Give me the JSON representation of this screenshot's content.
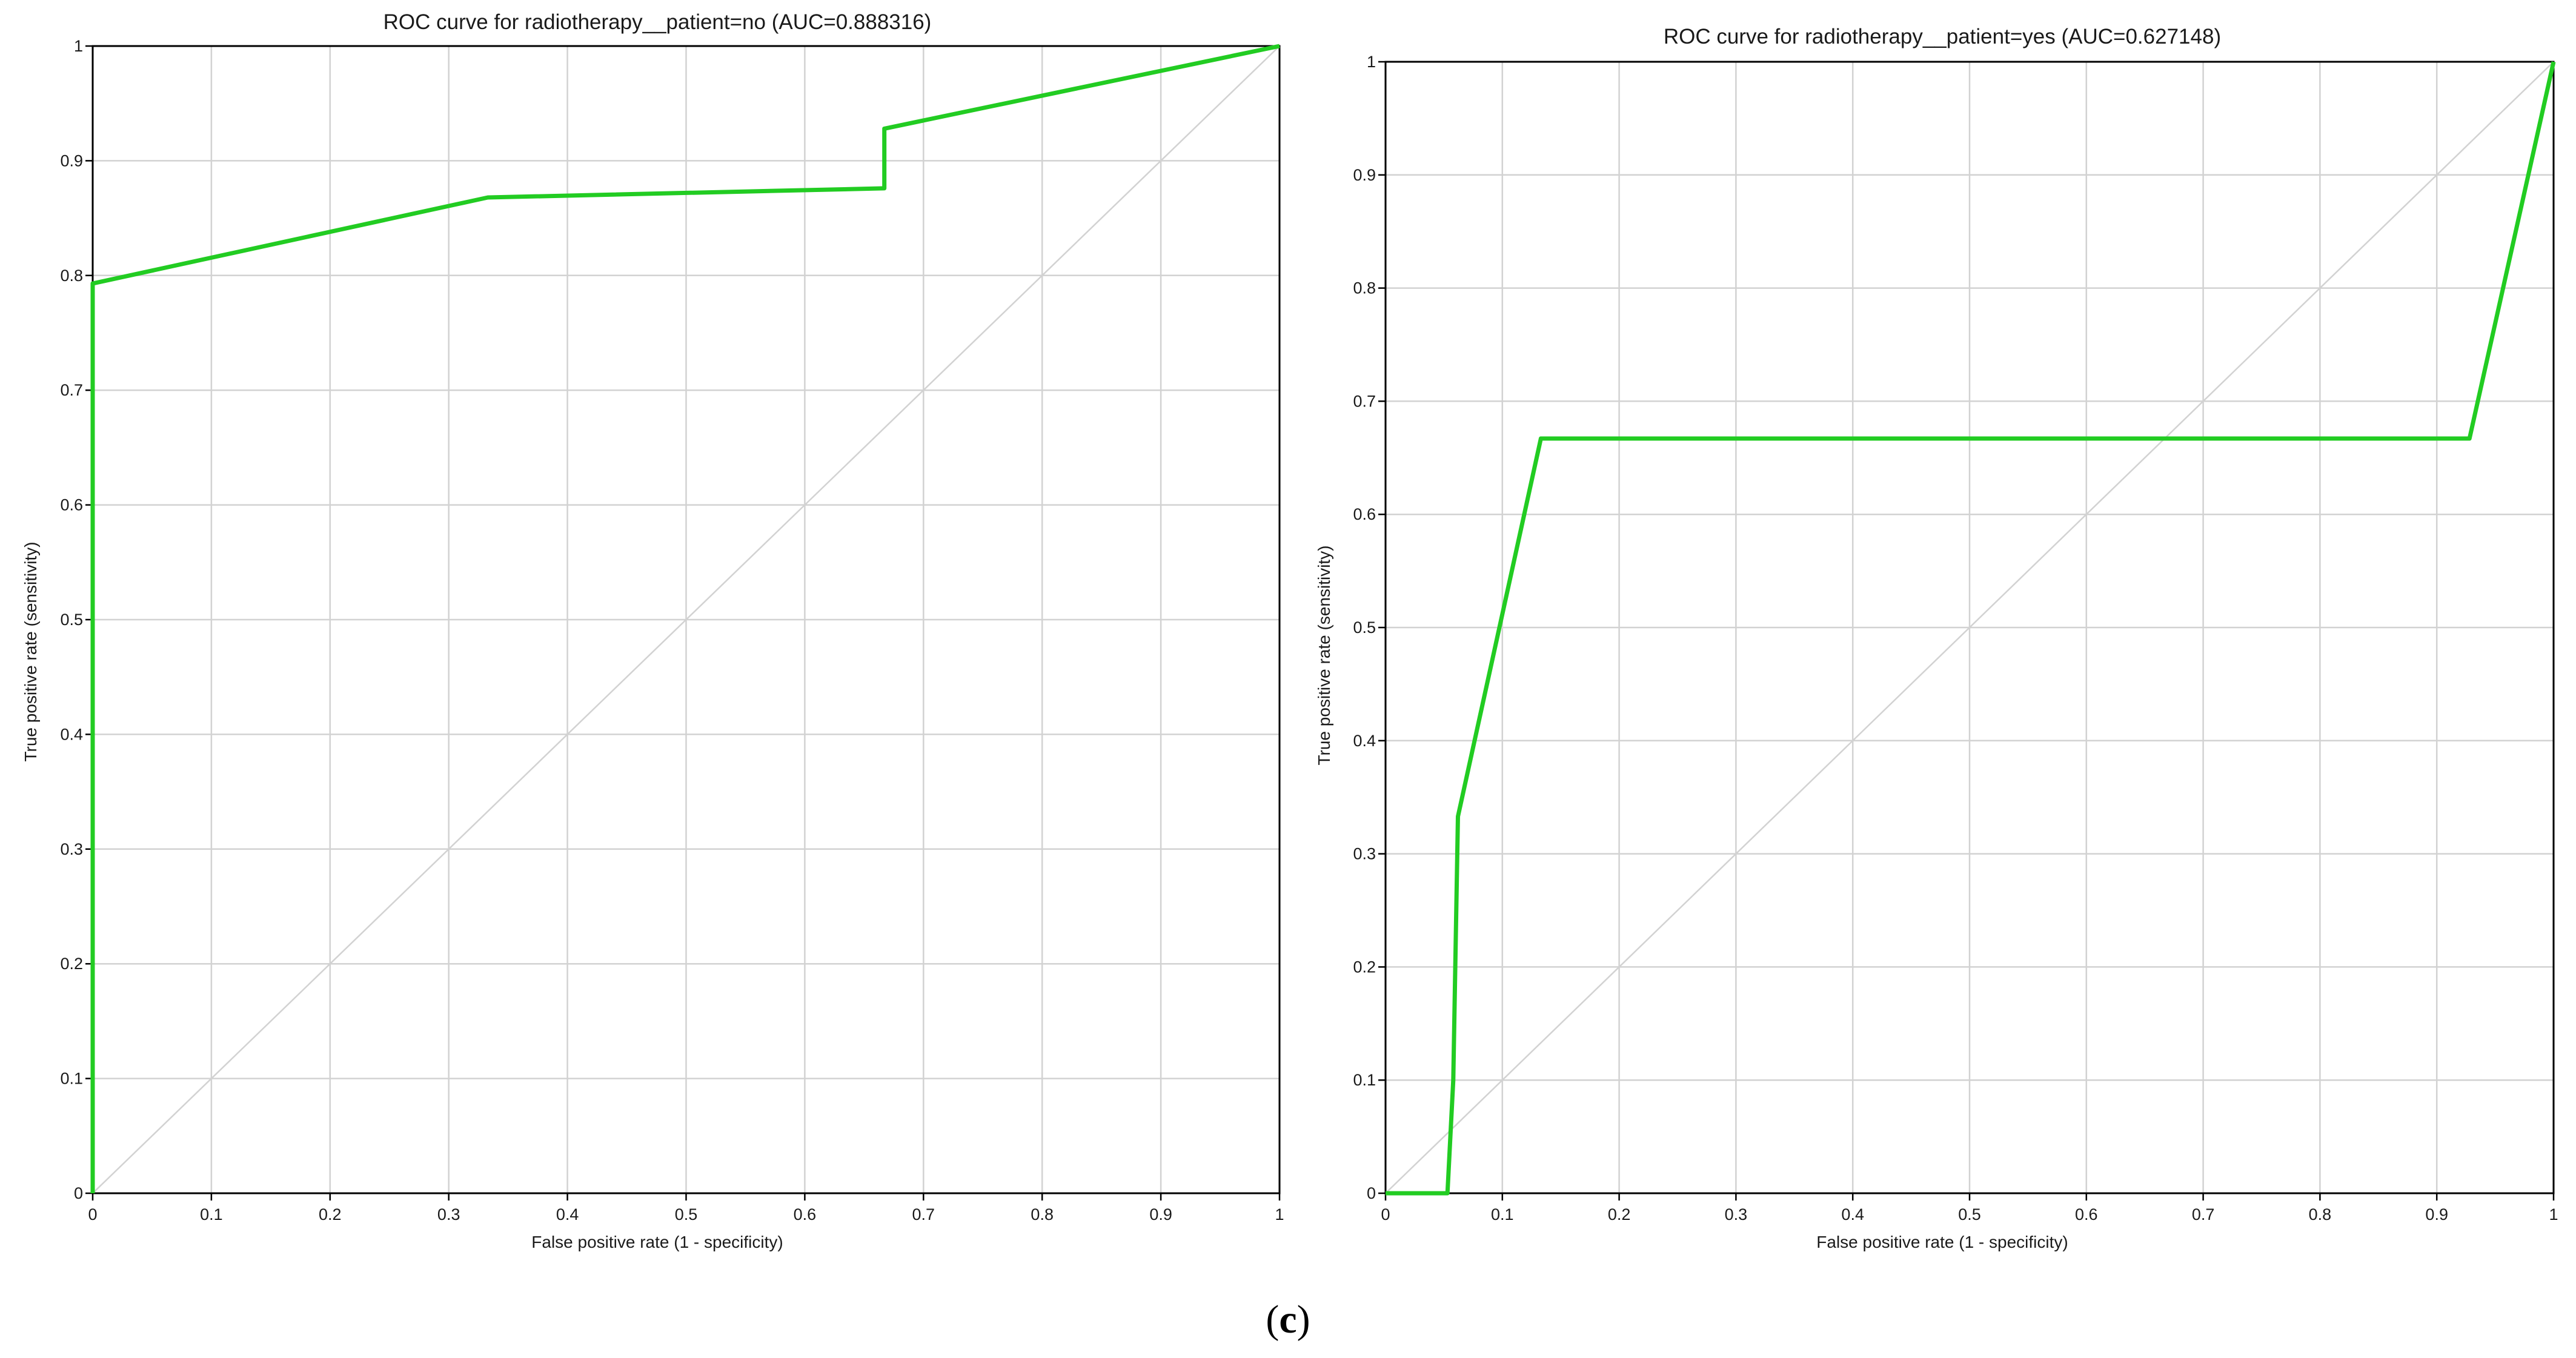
{
  "figure": {
    "caption_open": "(",
    "caption_letter": "c",
    "caption_close": ")"
  },
  "colors": {
    "curve": "#22cc22",
    "grid": "#d2d2d2",
    "diagonal": "#d2d2d2",
    "axis": "#000000"
  },
  "chart_data": [
    {
      "type": "line",
      "title": "ROC curve for radiotherapy__patient=no (AUC=0.888316)",
      "xlabel": "False positive rate (1 - specificity)",
      "ylabel": "True positive rate (sensitivity)",
      "xlim": [
        0,
        1
      ],
      "ylim": [
        0,
        1
      ],
      "grid": true,
      "x_ticks": [
        "0",
        "0.1",
        "0.2",
        "0.3",
        "0.4",
        "0.5",
        "0.6",
        "0.7",
        "0.8",
        "0.9",
        "1"
      ],
      "y_ticks": [
        "0",
        "0.1",
        "0.2",
        "0.3",
        "0.4",
        "0.5",
        "0.6",
        "0.7",
        "0.8",
        "0.9",
        "1"
      ],
      "reference_line": {
        "x": [
          0,
          1
        ],
        "y": [
          0,
          1
        ]
      },
      "series": [
        {
          "x": [
            0,
            0,
            0.333,
            0.667,
            0.667,
            1
          ],
          "y": [
            0,
            0.793,
            0.868,
            0.876,
            0.928,
            1
          ]
        }
      ]
    },
    {
      "type": "line",
      "title": "ROC curve for radiotherapy__patient=yes (AUC=0.627148)",
      "xlabel": "False positive rate (1 - specificity)",
      "ylabel": "True positive rate (sensitivity)",
      "xlim": [
        0,
        1
      ],
      "ylim": [
        0,
        1
      ],
      "grid": true,
      "x_ticks": [
        "0",
        "0.1",
        "0.2",
        "0.3",
        "0.4",
        "0.5",
        "0.6",
        "0.7",
        "0.8",
        "0.9",
        "1"
      ],
      "y_ticks": [
        "0",
        "0.1",
        "0.2",
        "0.3",
        "0.4",
        "0.5",
        "0.6",
        "0.7",
        "0.8",
        "0.9",
        "1"
      ],
      "reference_line": {
        "x": [
          0,
          1
        ],
        "y": [
          0,
          1
        ]
      },
      "series": [
        {
          "x": [
            0,
            0.053,
            0.058,
            0.062,
            0.133,
            0.928,
            1
          ],
          "y": [
            0,
            0,
            0.1,
            0.333,
            0.667,
            0.667,
            1
          ]
        }
      ]
    }
  ]
}
